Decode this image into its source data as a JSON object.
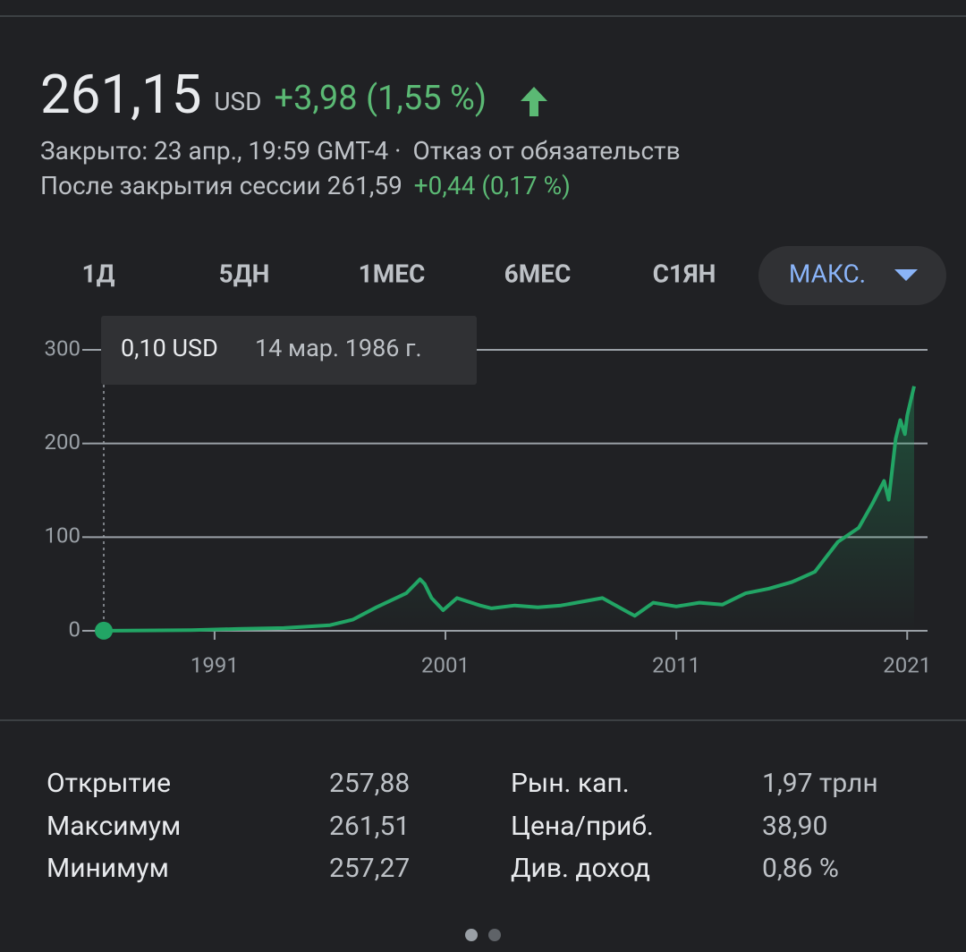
{
  "header": {
    "price": "261,15",
    "currency": "USD",
    "change": "+3,98 (1,55 %)",
    "status": "Закрыто: 23 апр., 19:59 GMT-4 ·",
    "disclaimer": "Отказ от обязательств",
    "after_hours": "После закрытия сессии 261,59",
    "after_hours_change": "+0,44 (0,17 %)"
  },
  "ranges": [
    "1Д",
    "5ДН",
    "1МЕС",
    "6МЕС",
    "С1ЯН",
    "МАКС."
  ],
  "tooltip": {
    "value": "0,10 USD",
    "date": "14 мар. 1986 г."
  },
  "chart_data": {
    "type": "line",
    "x": [
      1986.2,
      1990,
      1992,
      1994,
      1996,
      1997,
      1998,
      1999.3,
      1999.9,
      2000.1,
      2000.4,
      2000.9,
      2001.5,
      2002.5,
      2003,
      2004,
      2005,
      2006,
      2007.8,
      2008.9,
      2009.2,
      2010,
      2011,
      2012,
      2013,
      2014,
      2015,
      2016,
      2017,
      2018,
      2018.9,
      2019.5,
      2020.0,
      2020.2,
      2020.5,
      2020.7,
      2020.9,
      2021.0,
      2021.3
    ],
    "values": [
      0.1,
      0.8,
      2,
      3,
      6,
      12,
      25,
      40,
      55,
      50,
      35,
      22,
      35,
      27,
      24,
      27,
      25,
      27,
      35,
      20,
      16,
      30,
      26,
      30,
      28,
      40,
      45,
      52,
      63,
      95,
      110,
      136,
      160,
      140,
      205,
      225,
      210,
      230,
      261.15
    ],
    "color": "#22a565",
    "xlim": [
      1986.2,
      2021.3
    ],
    "xticks": [
      1991,
      2001,
      2011,
      2021
    ],
    "ylim": [
      0,
      300
    ],
    "yticks": [
      0,
      100,
      200,
      300
    ],
    "grid": true
  },
  "stats": [
    [
      "Открытие",
      "257,88"
    ],
    [
      "Максимум",
      "261,51"
    ],
    [
      "Минимум",
      "257,27"
    ],
    [
      "Рын. кап.",
      "1,97 трлн"
    ],
    [
      "Цена/приб.",
      "38,90"
    ],
    [
      "Див. доход",
      "0,86 %"
    ]
  ]
}
